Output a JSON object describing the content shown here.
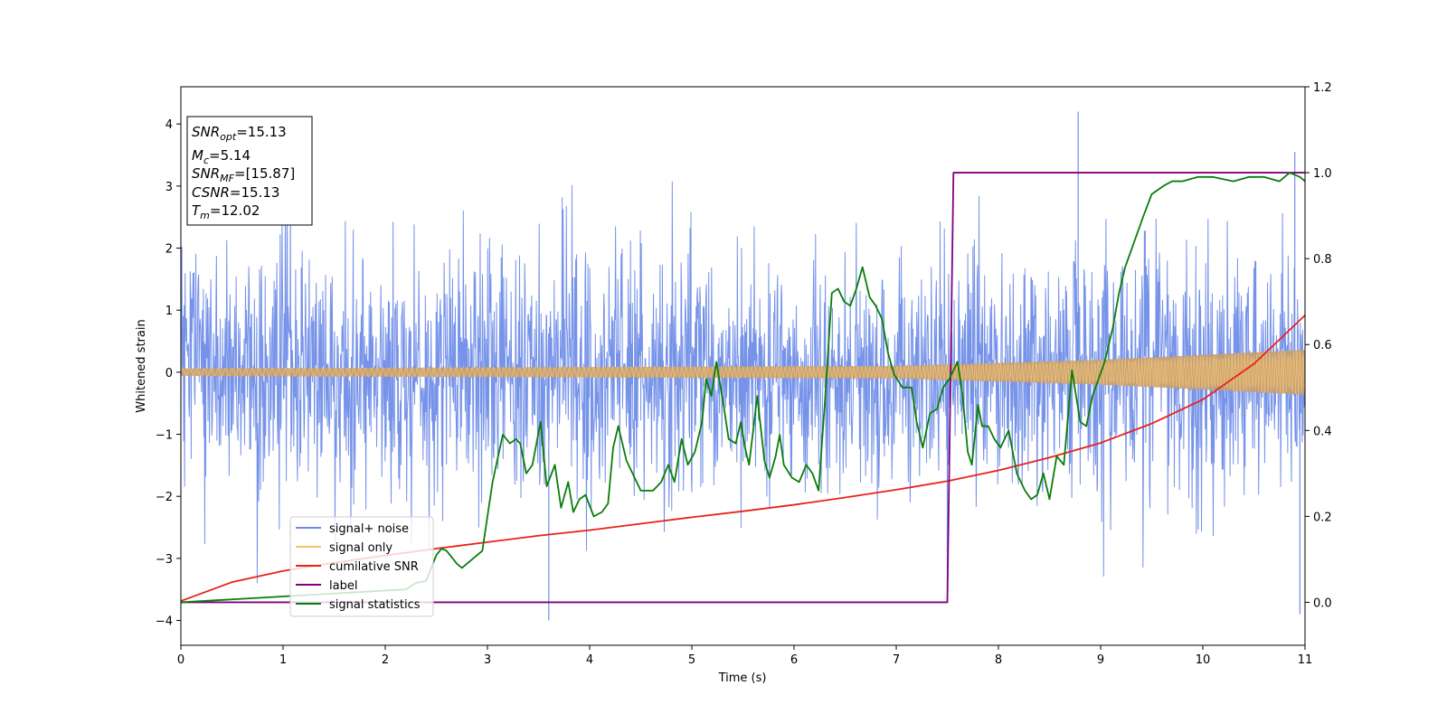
{
  "chart_data": {
    "type": "line",
    "title": "",
    "xlabel": "Time (s)",
    "ylabel": "Whitened strain",
    "y2label": "",
    "xlim": [
      0,
      11
    ],
    "ylim": [
      -4.4,
      4.6
    ],
    "y2lim": [
      -0.1,
      1.2
    ],
    "xticks": [
      "0",
      "1",
      "2",
      "3",
      "4",
      "5",
      "6",
      "7",
      "8",
      "9",
      "10",
      "11"
    ],
    "yticks": [
      "−4",
      "−3",
      "−2",
      "−1",
      "0",
      "1",
      "2",
      "3",
      "4"
    ],
    "y2ticks": [
      "0.0",
      "0.2",
      "0.4",
      "0.6",
      "0.8",
      "1.0",
      "1.2"
    ],
    "legend_position": "lower-left",
    "grid": false,
    "info_box": {
      "snr_opt": "SNR",
      "snr_opt_sub": "opt",
      "snr_opt_value": "=15.13",
      "mc": "M",
      "mc_sub": "c",
      "mc_value": "=5.14",
      "snr_mf": "SNR",
      "snr_mf_sub": "MF",
      "snr_mf_value": "=[15.87]",
      "csnr": "CSNR",
      "csnr_value": "=15.13",
      "tm": "T",
      "tm_sub": "m",
      "tm_value": "=12.02"
    },
    "series": [
      {
        "name": "signal+ noise",
        "color": "#6f8de8",
        "axis": "left",
        "kind": "noise-band",
        "core_range": [
          -1.5,
          1.6
        ],
        "notable_spikes": [
          [
            3.6,
            -4.0
          ],
          [
            8.78,
            4.2
          ],
          [
            10.9,
            3.55
          ],
          [
            10.95,
            -3.9
          ],
          [
            7.5,
            -3.5
          ]
        ]
      },
      {
        "name": "signal only",
        "color": "#f5c26b",
        "axis": "left",
        "kind": "chirp-envelope",
        "amplitude": [
          [
            0,
            0.06
          ],
          [
            7,
            0.1
          ],
          [
            9,
            0.2
          ],
          [
            11,
            0.36
          ]
        ]
      },
      {
        "name": "cumilative SNR",
        "color": "#e8221b",
        "axis": "right",
        "x": [
          0,
          0.5,
          1,
          1.5,
          2,
          2.5,
          3,
          3.5,
          4,
          4.5,
          5,
          5.5,
          6,
          6.5,
          7,
          7.5,
          8,
          8.5,
          9,
          9.5,
          10,
          10.5,
          11
        ],
        "values": [
          0.003,
          0.047,
          0.073,
          0.092,
          0.109,
          0.125,
          0.14,
          0.155,
          0.168,
          0.183,
          0.198,
          0.212,
          0.227,
          0.244,
          0.262,
          0.282,
          0.307,
          0.337,
          0.371,
          0.416,
          0.472,
          0.555,
          0.668
        ]
      },
      {
        "name": "label",
        "color": "#800080",
        "axis": "right",
        "x": [
          0,
          7.5,
          7.56,
          11
        ],
        "values": [
          0.0,
          0.0,
          1.0,
          1.0
        ]
      },
      {
        "name": "signal statistics",
        "color": "#0a7d0a",
        "axis": "right",
        "x": [
          0,
          2.2,
          2.3,
          2.4,
          2.5,
          2.55,
          2.6,
          2.7,
          2.75,
          2.85,
          2.95,
          3.05,
          3.15,
          3.22,
          3.28,
          3.32,
          3.38,
          3.44,
          3.52,
          3.58,
          3.66,
          3.72,
          3.79,
          3.84,
          3.9,
          3.96,
          4.04,
          4.12,
          4.18,
          4.23,
          4.28,
          4.36,
          4.44,
          4.5,
          4.62,
          4.7,
          4.77,
          4.83,
          4.9,
          4.96,
          5.03,
          5.1,
          5.14,
          5.19,
          5.24,
          5.31,
          5.36,
          5.43,
          5.48,
          5.52,
          5.56,
          5.64,
          5.71,
          5.76,
          5.82,
          5.86,
          5.9,
          5.98,
          6.05,
          6.12,
          6.18,
          6.24,
          6.3,
          6.37,
          6.43,
          6.49,
          6.55,
          6.61,
          6.67,
          6.74,
          6.8,
          6.86,
          6.92,
          6.98,
          7.06,
          7.15,
          7.2,
          7.26,
          7.33,
          7.4,
          7.46,
          7.52,
          7.6,
          7.65,
          7.7,
          7.74,
          7.8,
          7.84,
          7.9,
          7.96,
          8.02,
          8.1,
          8.18,
          8.26,
          8.32,
          8.38,
          8.44,
          8.5,
          8.57,
          8.64,
          8.72,
          8.8,
          8.86,
          8.92,
          8.98,
          9.04,
          9.12,
          9.18,
          9.24,
          9.3,
          9.36,
          9.42,
          9.5,
          9.56,
          9.62,
          9.7,
          9.8,
          9.95,
          10.1,
          10.3,
          10.45,
          10.6,
          10.75,
          10.85,
          10.95,
          11.0
        ],
        "values": [
          0.0,
          0.03,
          0.045,
          0.05,
          0.11,
          0.125,
          0.12,
          0.09,
          0.08,
          0.1,
          0.12,
          0.28,
          0.39,
          0.37,
          0.38,
          0.37,
          0.3,
          0.32,
          0.42,
          0.27,
          0.32,
          0.22,
          0.28,
          0.21,
          0.24,
          0.25,
          0.2,
          0.21,
          0.23,
          0.36,
          0.41,
          0.33,
          0.29,
          0.26,
          0.26,
          0.28,
          0.32,
          0.28,
          0.38,
          0.32,
          0.35,
          0.42,
          0.52,
          0.48,
          0.56,
          0.46,
          0.38,
          0.37,
          0.42,
          0.36,
          0.32,
          0.48,
          0.33,
          0.29,
          0.34,
          0.39,
          0.32,
          0.29,
          0.28,
          0.32,
          0.3,
          0.26,
          0.46,
          0.72,
          0.73,
          0.7,
          0.69,
          0.73,
          0.78,
          0.71,
          0.69,
          0.66,
          0.58,
          0.53,
          0.5,
          0.5,
          0.42,
          0.36,
          0.44,
          0.45,
          0.5,
          0.52,
          0.56,
          0.48,
          0.35,
          0.32,
          0.46,
          0.41,
          0.41,
          0.38,
          0.36,
          0.4,
          0.3,
          0.26,
          0.24,
          0.25,
          0.3,
          0.24,
          0.34,
          0.32,
          0.54,
          0.42,
          0.41,
          0.48,
          0.52,
          0.56,
          0.64,
          0.72,
          0.78,
          0.82,
          0.86,
          0.9,
          0.95,
          0.96,
          0.97,
          0.98,
          0.98,
          0.99,
          0.99,
          0.98,
          0.99,
          0.99,
          0.98,
          1.0,
          0.99,
          0.98
        ]
      }
    ]
  }
}
